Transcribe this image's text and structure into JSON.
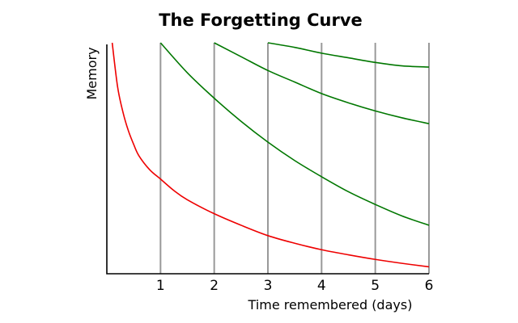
{
  "chart_data": {
    "type": "line",
    "title": "The Forgetting Curve",
    "xlabel": "Time remembered (days)",
    "ylabel": "Memory",
    "xlim": [
      0,
      6
    ],
    "ylim": [
      0,
      1
    ],
    "x_ticks": [
      "1",
      "2",
      "3",
      "4",
      "5",
      "6"
    ],
    "grid": "vertical lines at days 1-6",
    "legend": "none",
    "colors": {
      "initial": "#ee0000",
      "review": "#007700",
      "grid": "#999999",
      "axis": "#000000"
    },
    "series": [
      {
        "color": "#ee0000",
        "x": [
          0.1,
          0.2,
          0.3,
          0.4,
          0.5,
          0.6,
          0.8,
          1.0,
          1.25,
          1.5,
          2.0,
          2.5,
          3.0,
          3.5,
          4.0,
          4.5,
          5.0,
          5.5,
          6.0
        ],
        "y": [
          1.0,
          0.81,
          0.7,
          0.62,
          0.56,
          0.51,
          0.45,
          0.41,
          0.36,
          0.32,
          0.26,
          0.21,
          0.165,
          0.132,
          0.104,
          0.082,
          0.062,
          0.045,
          0.03
        ]
      },
      {
        "color": "#007700",
        "x": [
          1.0,
          1.5,
          2.0,
          2.5,
          3.0,
          3.5,
          4.0,
          4.5,
          5.0,
          5.5,
          6.0
        ],
        "y": [
          1.0,
          0.87,
          0.76,
          0.66,
          0.57,
          0.49,
          0.42,
          0.355,
          0.3,
          0.25,
          0.21
        ]
      },
      {
        "color": "#007700",
        "x": [
          2.0,
          2.5,
          3.0,
          3.5,
          4.0,
          4.5,
          5.0,
          5.5,
          6.0
        ],
        "y": [
          1.0,
          0.94,
          0.88,
          0.83,
          0.78,
          0.74,
          0.705,
          0.675,
          0.65
        ]
      },
      {
        "color": "#007700",
        "x": [
          3.0,
          3.5,
          4.0,
          4.5,
          5.0,
          5.5,
          6.0
        ],
        "y": [
          1.0,
          0.98,
          0.955,
          0.935,
          0.915,
          0.9,
          0.895
        ]
      }
    ]
  }
}
